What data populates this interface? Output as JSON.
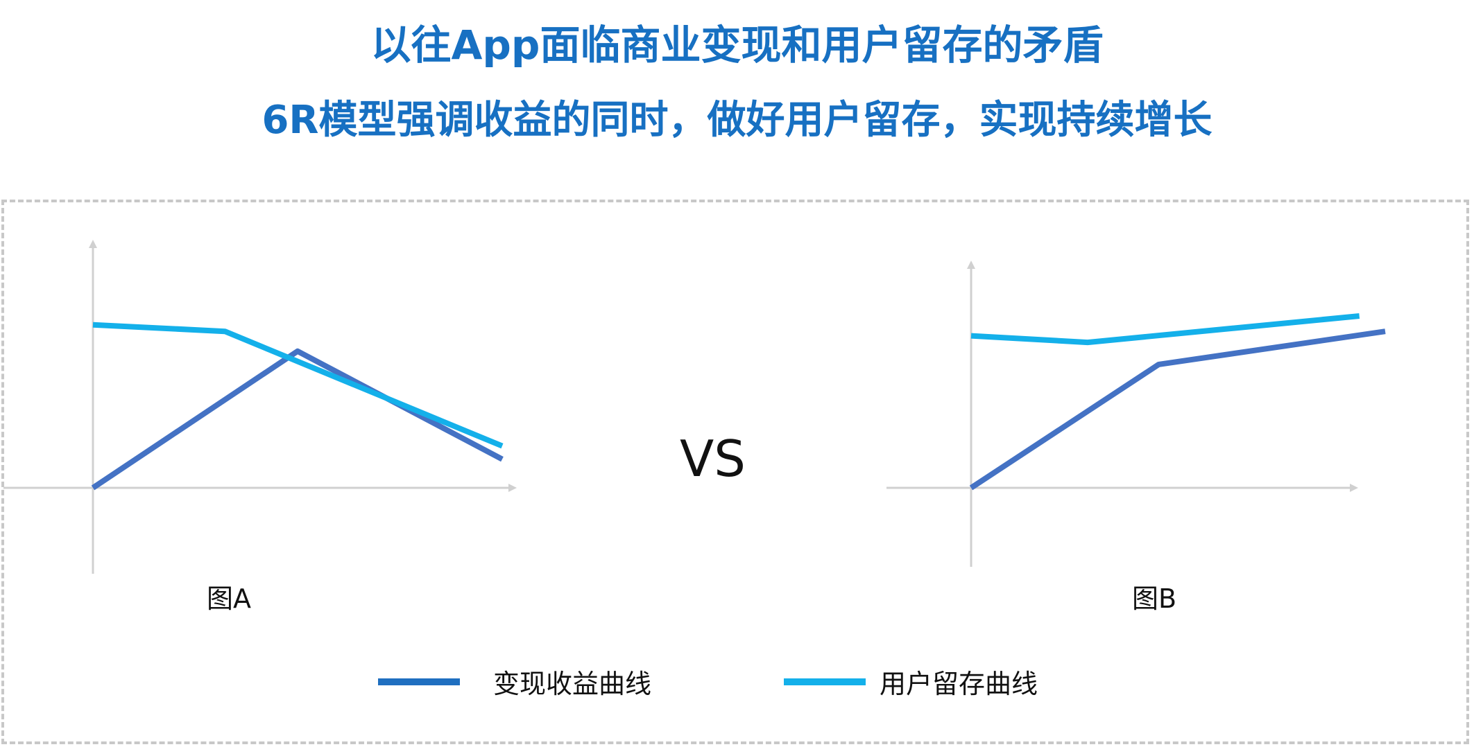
{
  "header": {
    "title": "以往App面临商业变现和用户留存的矛盾",
    "subtitle": "6R模型强调收益的同时，做好用户留存，实现持续增长"
  },
  "vs_label": "VS",
  "colors": {
    "title": "#1770c2",
    "revenue_line": "#4472c4",
    "retention_line": "#14b0ea",
    "axis": "#d0d0d0",
    "frame_border": "#c8c8c8"
  },
  "legend": {
    "revenue": {
      "label": "变现收益曲线",
      "color": "#1f6fc0"
    },
    "retention": {
      "label": "用户留存曲线",
      "color": "#14b0ea"
    }
  },
  "chart_data": [
    {
      "type": "line",
      "caption": "图A",
      "x": [
        0,
        1,
        1.55,
        3.1
      ],
      "series": [
        {
          "name": "变现收益曲线",
          "x": [
            0,
            1.55,
            3.1
          ],
          "values": [
            0,
            6.2,
            1.3
          ]
        },
        {
          "name": "用户留存曲线",
          "x": [
            0,
            1,
            3.1
          ],
          "values": [
            7.4,
            7.1,
            1.9
          ]
        }
      ],
      "xlim": [
        0,
        3.1
      ],
      "ylim": [
        0,
        10
      ],
      "grid": false
    },
    {
      "type": "line",
      "caption": "图B",
      "x": [
        0,
        0.9,
        1.45,
        3.2
      ],
      "series": [
        {
          "name": "变现收益曲线",
          "x": [
            0,
            1.45,
            3.2
          ],
          "values": [
            0,
            5.6,
            7.1
          ]
        },
        {
          "name": "用户留存曲线",
          "x": [
            0,
            0.9,
            3.0
          ],
          "values": [
            6.9,
            6.6,
            7.8
          ]
        }
      ],
      "xlim": [
        0,
        3.2
      ],
      "ylim": [
        0,
        10
      ],
      "grid": false
    }
  ]
}
